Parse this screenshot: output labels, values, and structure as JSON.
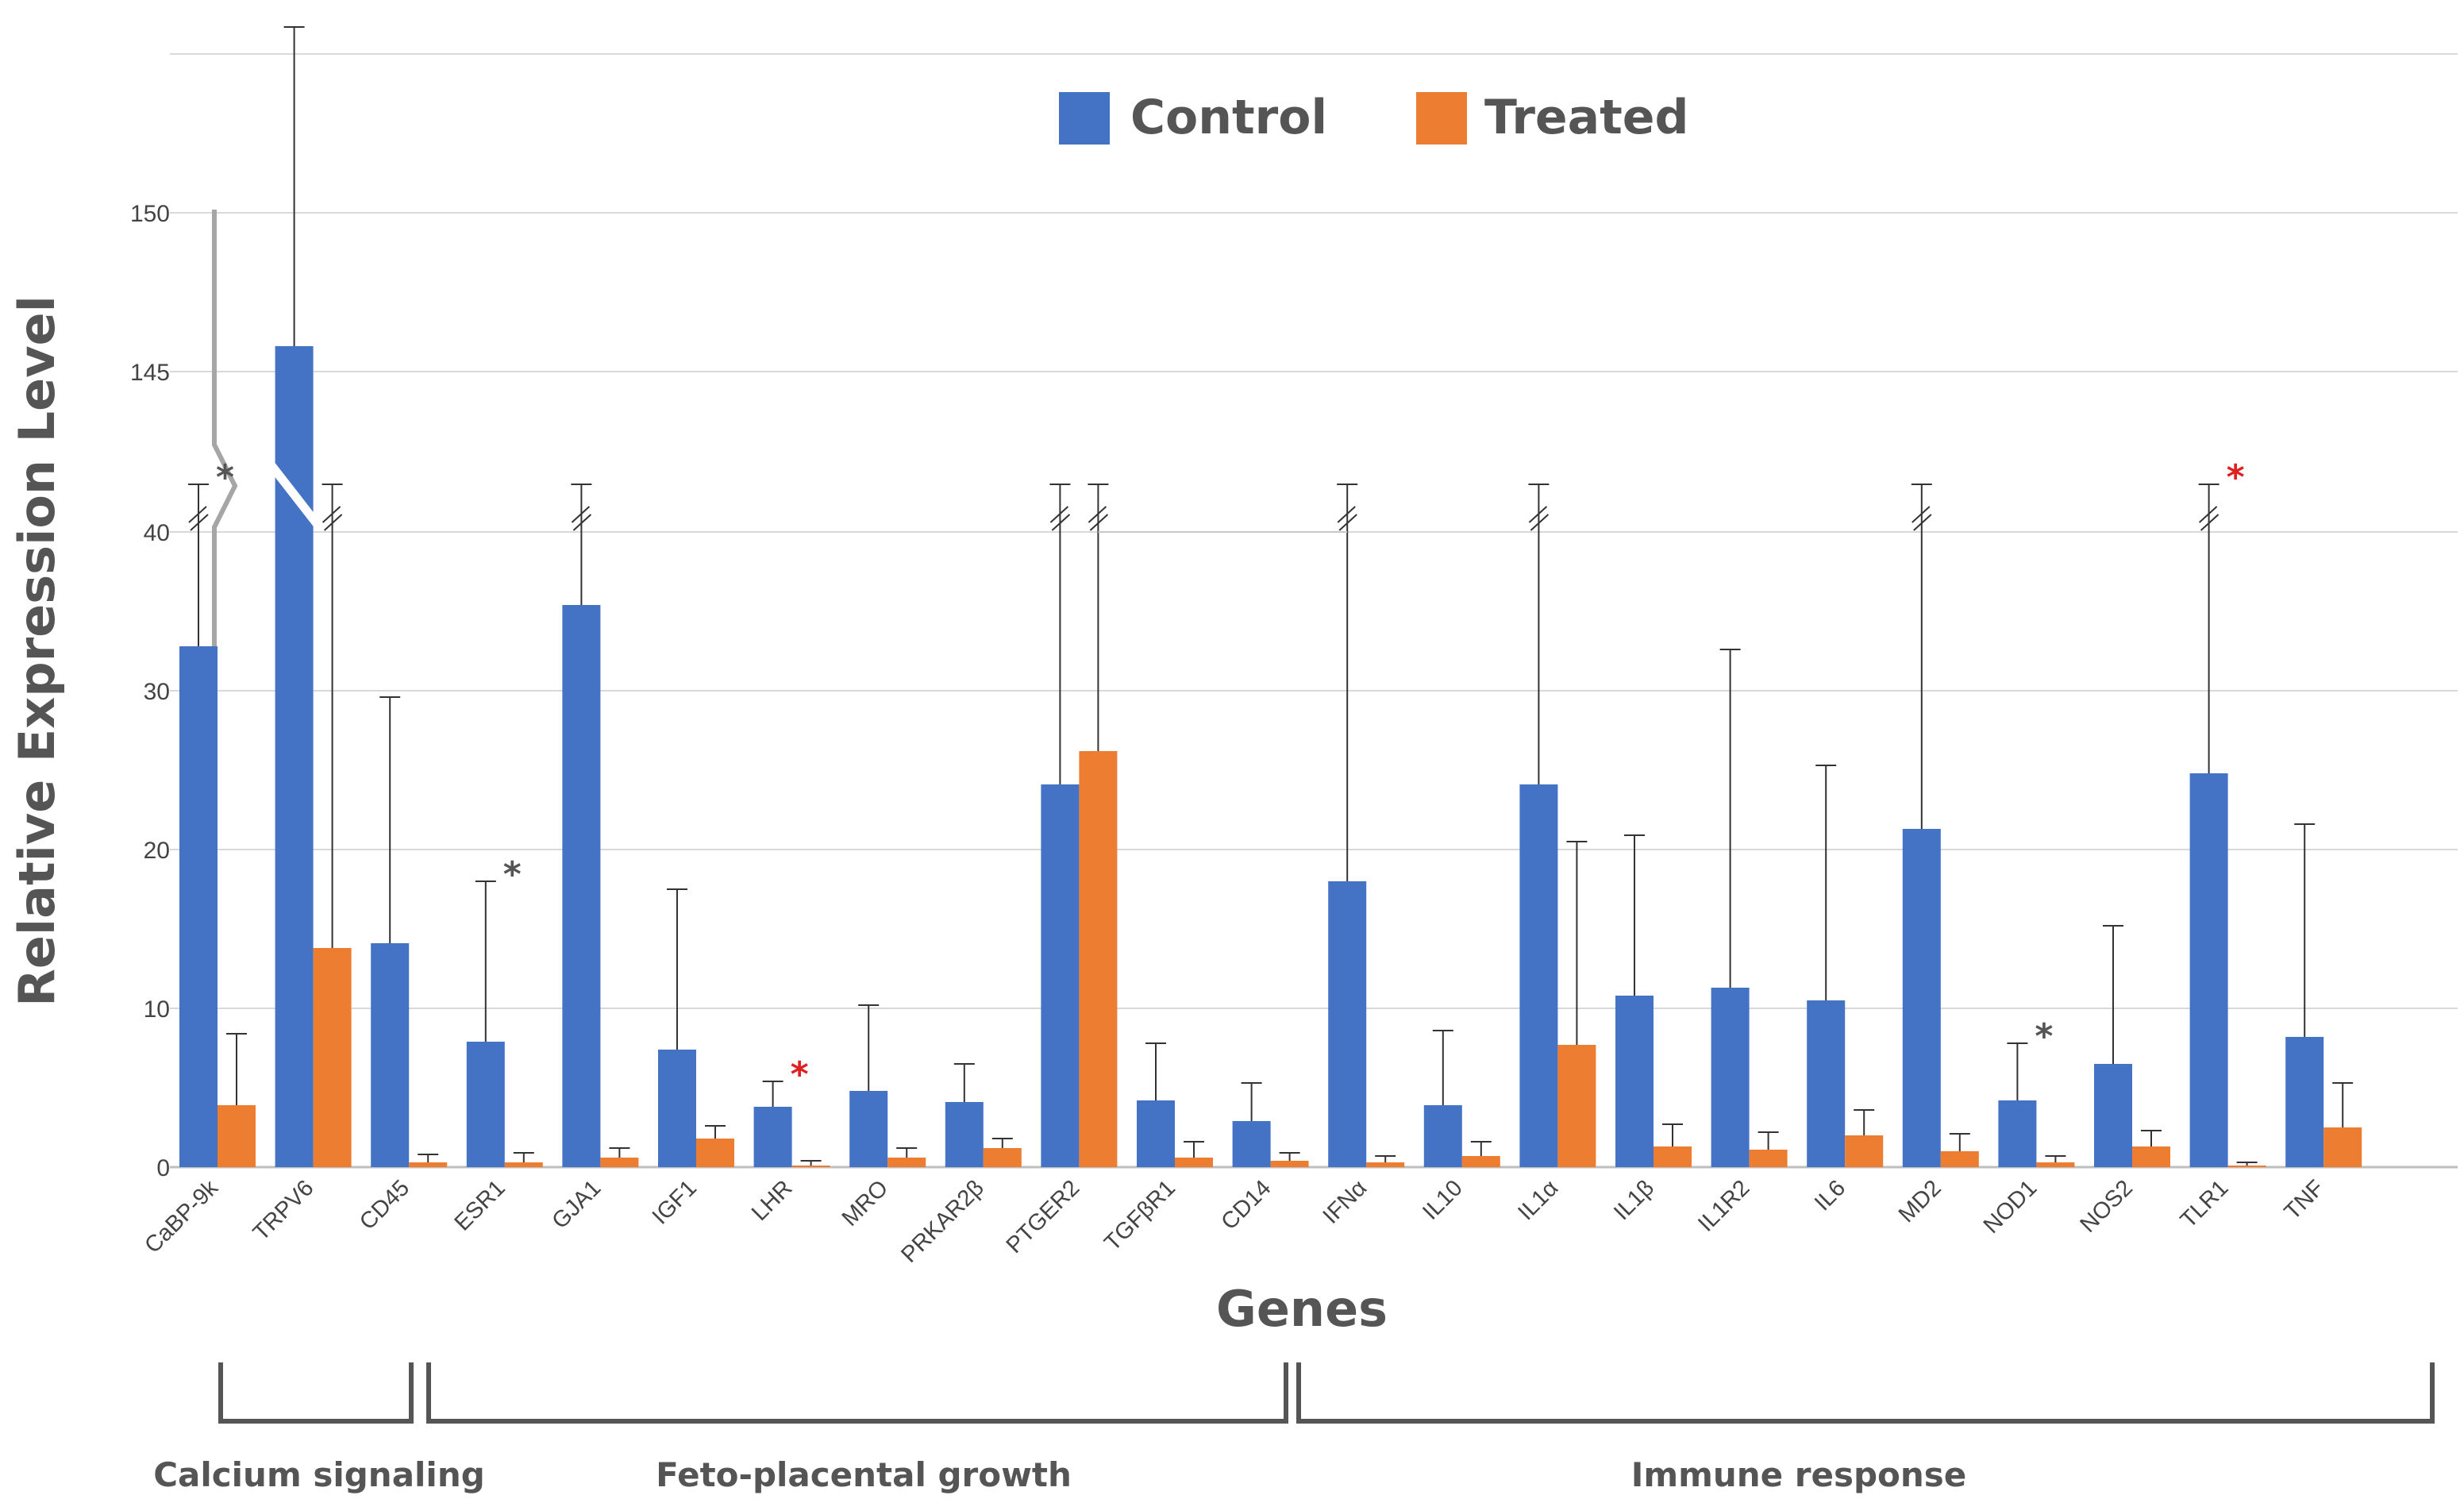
{
  "chart_data": {
    "type": "bar",
    "title": "",
    "xlabel": "Genes",
    "ylabel": "Relative Expression Level",
    "y_axis_break": {
      "lower_range": [
        0,
        40
      ],
      "upper_range": [
        140,
        150
      ]
    },
    "yticks": [
      "0",
      "10",
      "20",
      "30",
      "40",
      "145",
      "150"
    ],
    "legend_position": "top-center",
    "categories": [
      "CaBP-9k",
      "TRPV6",
      "CD45",
      "ESR1",
      "GJA1",
      "IGF1",
      "LHR",
      "MRO",
      "PRKAR2β",
      "PTGER2",
      "TGFβR1",
      "CD14",
      "IFNα",
      "IL10",
      "IL1α",
      "IL1β",
      "IL1R2",
      "IL6",
      "MD2",
      "NOD1",
      "NOS2",
      "TLR1",
      "TNF"
    ],
    "series": [
      {
        "name": "Control",
        "color": "#4472C4",
        "values": [
          32.8,
          145.8,
          14.1,
          7.9,
          35.4,
          7.4,
          3.8,
          4.8,
          4.1,
          24.1,
          4.2,
          2.9,
          18.0,
          3.9,
          24.1,
          10.8,
          11.3,
          10.5,
          21.3,
          4.2,
          6.5,
          24.8,
          8.2
        ],
        "error_plus": [
          ">40",
          ">150",
          15.5,
          10.1,
          ">40",
          10.1,
          1.6,
          5.4,
          2.4,
          ">40",
          3.6,
          2.4,
          ">40",
          4.7,
          ">40",
          10.1,
          21.3,
          14.8,
          ">40",
          3.6,
          8.7,
          ">40",
          13.4
        ]
      },
      {
        "name": "Treated",
        "color": "#ED7D31",
        "values": [
          3.9,
          13.8,
          0.3,
          0.3,
          0.6,
          1.8,
          0.1,
          0.6,
          1.2,
          26.2,
          0.6,
          0.4,
          0.3,
          0.7,
          7.7,
          1.3,
          1.1,
          2.0,
          1.0,
          0.3,
          1.3,
          0.1,
          2.5
        ],
        "error_plus": [
          4.5,
          ">40",
          0.5,
          0.6,
          0.6,
          0.8,
          0.3,
          0.6,
          0.6,
          ">40",
          1.0,
          0.5,
          0.4,
          0.9,
          12.8,
          1.4,
          1.1,
          1.6,
          1.1,
          0.4,
          1.0,
          0.2,
          2.8
        ]
      }
    ],
    "significance": [
      {
        "category": "CaBP-9k",
        "mark": "*",
        "color": "#555555"
      },
      {
        "category": "ESR1",
        "mark": "*",
        "color": "#555555"
      },
      {
        "category": "LHR",
        "mark": "*",
        "color": "#E02020"
      },
      {
        "category": "NOD1",
        "mark": "*",
        "color": "#555555"
      },
      {
        "category": "TLR1",
        "mark": "*",
        "color": "#E02020"
      }
    ],
    "gene_groups": [
      {
        "label": "Calcium signaling",
        "from": "CaBP-9k",
        "to": "TRPV6"
      },
      {
        "label": "Feto-placental growth",
        "from": "CD45",
        "to": "TGFβR1"
      },
      {
        "label": "Immune response",
        "from": "CD14",
        "to": "TNF"
      }
    ]
  }
}
